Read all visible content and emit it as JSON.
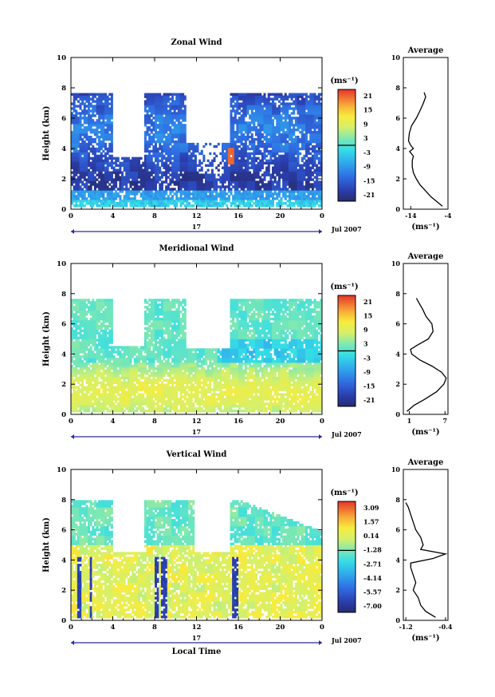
{
  "chart_data": [
    {
      "type": "heatmap",
      "title": "Zonal Wind",
      "ylabel": "Height (km)",
      "xlim": [
        0,
        24
      ],
      "ylim": [
        0,
        10
      ],
      "x_ticks": [
        "0",
        "4",
        "8",
        "12",
        "16",
        "20",
        "0"
      ],
      "y_ticks": [
        "0",
        "2",
        "4",
        "6",
        "8",
        "10"
      ],
      "date_label": "17",
      "month_label": "Jul 2007",
      "colorbar": {
        "unit_label": "(ms⁻¹)",
        "tick_labels": [
          "21",
          "15",
          "9",
          "3",
          "-3",
          "-9",
          "-15",
          "-21"
        ],
        "range": [
          -24,
          24
        ],
        "zero_line": 0
      },
      "average_profile": {
        "title": "Average",
        "xlabel": "(ms⁻¹)",
        "x_ticks": [
          "-14",
          "-4"
        ],
        "xlim": [
          -16,
          -4
        ],
        "height_km": [
          0.2,
          0.5,
          0.8,
          1.2,
          1.6,
          2.0,
          2.4,
          2.8,
          3.2,
          3.5,
          3.8,
          4.0,
          4.2,
          4.5,
          5.0,
          5.5,
          6.0,
          6.5,
          7.0,
          7.4,
          7.7
        ],
        "value": [
          -5.5,
          -7.0,
          -8.5,
          -10.0,
          -11.5,
          -12.5,
          -13.3,
          -13.6,
          -13.6,
          -13.3,
          -14.3,
          -13.3,
          -14.0,
          -14.6,
          -14.4,
          -13.8,
          -12.5,
          -11.5,
          -10.6,
          -10.0,
          -10.4
        ]
      }
    },
    {
      "type": "heatmap",
      "title": "Meridional Wind",
      "ylabel": "Height (km)",
      "xlim": [
        0,
        24
      ],
      "ylim": [
        0,
        10
      ],
      "x_ticks": [
        "0",
        "4",
        "8",
        "12",
        "16",
        "20",
        "0"
      ],
      "y_ticks": [
        "0",
        "2",
        "4",
        "6",
        "8",
        "10"
      ],
      "date_label": "17",
      "month_label": "Jul 2007",
      "colorbar": {
        "unit_label": "(ms⁻¹)",
        "tick_labels": [
          "21",
          "15",
          "9",
          "3",
          "-3",
          "-9",
          "-15",
          "-21"
        ],
        "range": [
          -24,
          24
        ],
        "zero_line": 0
      },
      "average_profile": {
        "title": "Average",
        "xlabel": "(ms⁻¹)",
        "x_ticks": [
          "1",
          "7"
        ],
        "xlim": [
          0,
          7.5
        ],
        "height_km": [
          0.2,
          0.6,
          1.0,
          1.5,
          2.0,
          2.4,
          2.8,
          3.2,
          3.6,
          4.0,
          4.3,
          4.6,
          5.0,
          5.5,
          6.0,
          6.5,
          7.0,
          7.4,
          7.7
        ],
        "value": [
          0.6,
          1.8,
          3.6,
          5.6,
          6.8,
          7.2,
          6.4,
          4.8,
          2.8,
          1.4,
          1.2,
          2.4,
          4.2,
          5.0,
          4.8,
          3.8,
          3.2,
          2.6,
          2.2
        ]
      }
    },
    {
      "type": "heatmap",
      "title": "Vertical Wind",
      "ylabel": "Height (km)",
      "xlabel": "Local Time",
      "xlim": [
        0,
        24
      ],
      "ylim": [
        0,
        10
      ],
      "x_ticks": [
        "0",
        "4",
        "8",
        "12",
        "16",
        "20",
        "0"
      ],
      "y_ticks": [
        "0",
        "2",
        "4",
        "6",
        "8",
        "10"
      ],
      "date_label": "17",
      "month_label": "Jul 2007",
      "colorbar": {
        "unit_label": "(ms⁻¹)",
        "tick_labels": [
          "3.09",
          "1.57",
          "0.14",
          "-1.28",
          "-2.71",
          "-4.14",
          "-5.57",
          "-7.00"
        ],
        "range": [
          -7.7,
          3.8
        ],
        "zero_line": -1.28
      },
      "average_profile": {
        "title": "Average",
        "xlabel": "(ms⁻¹)",
        "x_ticks": [
          "-1.2",
          "-0.4"
        ],
        "xlim": [
          -1.25,
          -0.35
        ],
        "height_km": [
          0.2,
          0.6,
          1.0,
          1.5,
          2.0,
          2.5,
          3.0,
          3.5,
          3.8,
          4.1,
          4.4,
          4.7,
          5.0,
          5.5,
          6.0,
          6.5,
          7.0,
          7.5,
          7.8
        ],
        "value": [
          -0.6,
          -0.8,
          -0.9,
          -0.95,
          -1.05,
          -1.0,
          -1.05,
          -1.1,
          -1.1,
          -0.65,
          -0.4,
          -0.9,
          -0.85,
          -0.9,
          -1.0,
          -1.05,
          -1.1,
          -1.15,
          -1.2
        ]
      }
    }
  ]
}
